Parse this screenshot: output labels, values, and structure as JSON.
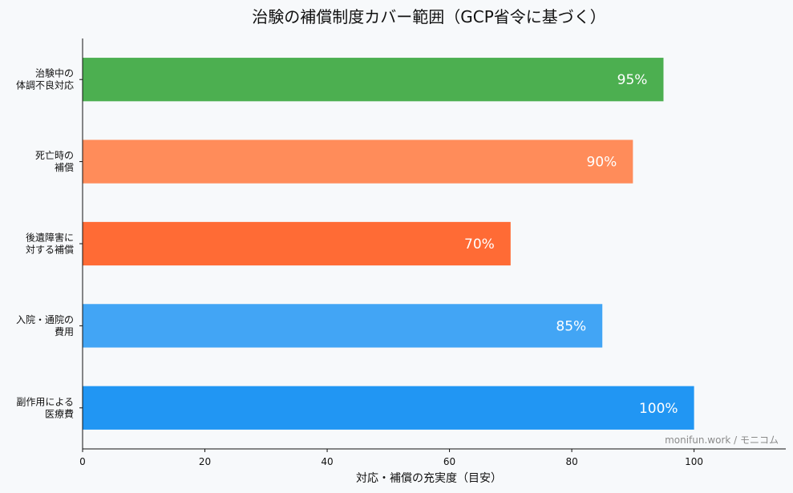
{
  "chart_data": {
    "type": "bar",
    "orientation": "horizontal",
    "title": "治験の補償制度カバー範囲（GCP省令に基づく）",
    "xlabel": "対応・補償の充実度（目安）",
    "ylabel": "",
    "xlim": [
      0,
      115
    ],
    "xticks": [
      0,
      20,
      40,
      60,
      80,
      100
    ],
    "grid": false,
    "categories": [
      [
        "治験中の",
        "体調不良対応"
      ],
      [
        "死亡時の",
        "補償"
      ],
      [
        "後遺障害に",
        "対する補償"
      ],
      [
        "入院・通院の",
        "費用"
      ],
      [
        "副作用による",
        "医療費"
      ]
    ],
    "values": [
      95,
      90,
      70,
      85,
      100
    ],
    "data_labels": [
      "95%",
      "90%",
      "70%",
      "85%",
      "100%"
    ],
    "colors": [
      "#4caf50",
      "#ff8c5a",
      "#ff6b35",
      "#42a5f5",
      "#2196f3"
    ]
  },
  "watermark": "monifun.work / モニコム"
}
